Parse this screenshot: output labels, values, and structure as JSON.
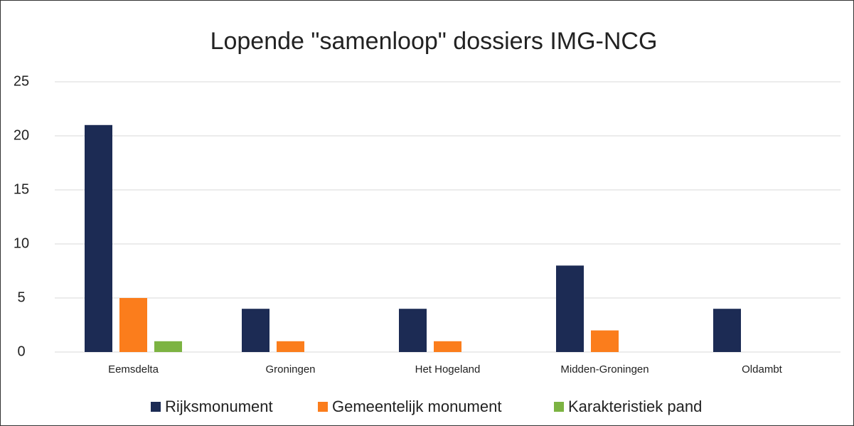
{
  "chart_data": {
    "type": "bar",
    "title": "Lopende \"samenloop\" dossiers IMG-NCG",
    "categories": [
      "Eemsdelta",
      "Groningen",
      "Het Hogeland",
      "Midden-Groningen",
      "Oldambt"
    ],
    "series": [
      {
        "name": "Rijksmonument",
        "color": "#1c2b54",
        "values": [
          21,
          4,
          4,
          8,
          4
        ]
      },
      {
        "name": "Gemeentelijk monument",
        "color": "#fb7d1c",
        "values": [
          5,
          1,
          1,
          2,
          0
        ]
      },
      {
        "name": "Karakteristiek pand",
        "color": "#7cb342",
        "values": [
          1,
          0,
          0,
          0,
          0
        ]
      }
    ],
    "ylim": [
      0,
      25
    ],
    "yticks": [
      0,
      5,
      10,
      15,
      20,
      25
    ],
    "grid": true,
    "legend": "bottom"
  }
}
